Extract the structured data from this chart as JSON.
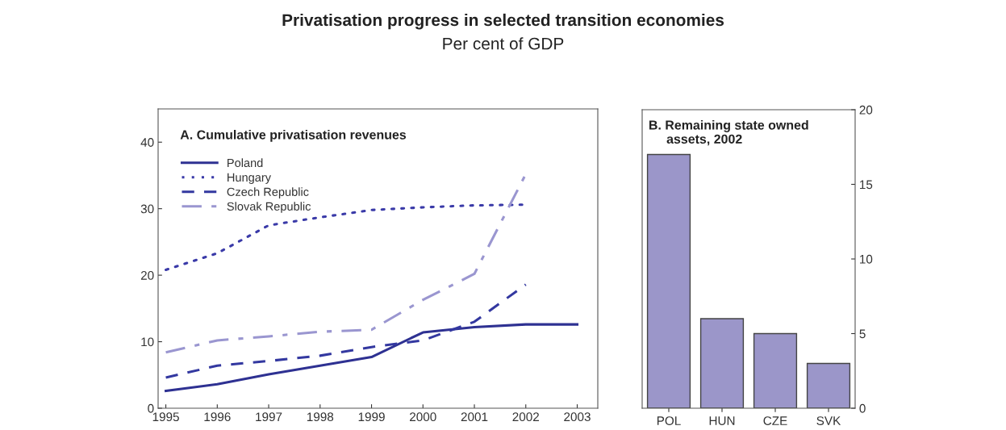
{
  "chart_data": [
    {
      "type": "line",
      "title": "Privatisation progress in selected transition economies",
      "subtitle": "Per cent of GDP",
      "annotations": [
        "A. Cumulative privatisation revenues"
      ],
      "x": [
        1995,
        1996,
        1997,
        1998,
        1999,
        2000,
        2001,
        2002,
        2003
      ],
      "xlim": [
        1994.85,
        2003.4
      ],
      "xticks": [
        1995,
        1996,
        1997,
        1998,
        1999,
        2000,
        2001,
        2002,
        2003
      ],
      "ylim": [
        0,
        45
      ],
      "yticks": [
        0,
        10,
        20,
        30,
        40
      ],
      "legend": "top left",
      "grid": false,
      "series": [
        {
          "name": "Poland",
          "color": "#2e3192",
          "line_style": "solid",
          "values": [
            2.6,
            3.6,
            5.1,
            6.4,
            7.7,
            11.4,
            12.2,
            12.6,
            12.6
          ]
        },
        {
          "name": "Hungary",
          "color": "#3a3aa8",
          "line_style": "dotted",
          "values": [
            20.8,
            23.3,
            27.5,
            28.7,
            29.8,
            30.2,
            30.5,
            30.6,
            null
          ]
        },
        {
          "name": "Czech Republic",
          "color": "#3338a0",
          "line_style": "dashed",
          "values": [
            4.6,
            6.4,
            7.1,
            7.9,
            9.2,
            10.2,
            13.0,
            18.6,
            null
          ]
        },
        {
          "name": "Slovak Republic",
          "color": "#9a96d0",
          "line_style": "dashdot",
          "values": [
            8.4,
            10.2,
            10.8,
            11.5,
            11.8,
            16.3,
            20.2,
            35.2,
            null
          ]
        }
      ]
    },
    {
      "type": "bar",
      "title": "B. Remaining state owned\n     assets, 2002",
      "categories": [
        "POL",
        "HUN",
        "CZE",
        "SVK"
      ],
      "values": [
        17,
        6,
        5,
        3
      ],
      "color": "#9b96c9",
      "ylim": [
        0,
        20
      ],
      "yticks": [
        0,
        5,
        10,
        15,
        20
      ],
      "grid": false
    }
  ]
}
